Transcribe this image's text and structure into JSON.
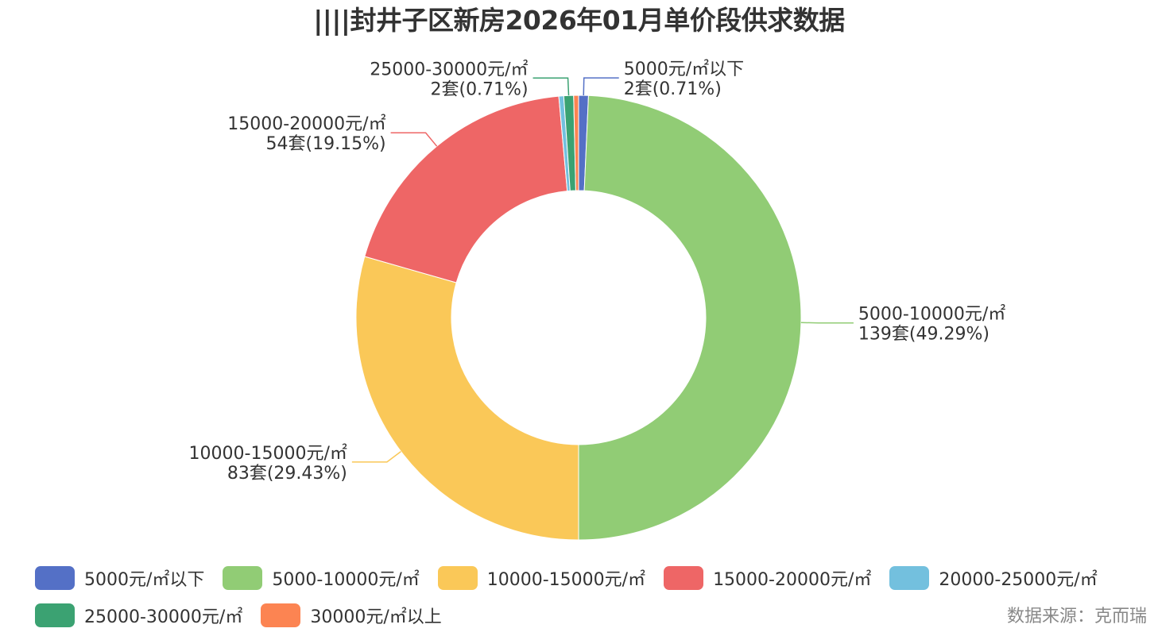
{
  "title": "||||封井子区新房2026年01月单价段供求数据",
  "source_note": "数据来源：克而瑞",
  "chart_data": {
    "type": "pie",
    "donut": true,
    "start_angle_deg": 0,
    "direction": "clockwise",
    "categories": [
      "5000元/㎡以下",
      "5000-10000元/㎡",
      "10000-15000元/㎡",
      "15000-20000元/㎡",
      "20000-25000元/㎡",
      "25000-30000元/㎡",
      "30000元/㎡以上"
    ],
    "values": [
      2,
      139,
      83,
      54,
      1,
      2,
      1
    ],
    "colors": [
      "#5470c6",
      "#91cc75",
      "#fac858",
      "#ee6666",
      "#73c0de",
      "#3ba272",
      "#fc8452"
    ],
    "slice_labels": [
      {
        "index": 0,
        "line1": "5000元/㎡以下",
        "line2": "2套(0.71%)"
      },
      {
        "index": 1,
        "line1": "5000-10000元/㎡",
        "line2": "139套(49.29%)"
      },
      {
        "index": 2,
        "line1": "10000-15000元/㎡",
        "line2": "83套(29.43%)"
      },
      {
        "index": 3,
        "line1": "15000-20000元/㎡",
        "line2": "54套(19.15%)"
      },
      {
        "index": 5,
        "line1": "25000-30000元/㎡",
        "line2": "2套(0.71%)"
      }
    ],
    "legend": [
      [
        {
          "label": "5000元/㎡以下",
          "color": "#5470c6"
        },
        {
          "label": "5000-10000元/㎡",
          "color": "#91cc75"
        },
        {
          "label": "10000-15000元/㎡",
          "color": "#fac858"
        },
        {
          "label": "15000-20000元/㎡",
          "color": "#ee6666"
        },
        {
          "label": "20000-25000元/㎡",
          "color": "#73c0de"
        }
      ],
      [
        {
          "label": "25000-30000元/㎡",
          "color": "#3ba272"
        },
        {
          "label": "30000元/㎡以上",
          "color": "#fc8452"
        }
      ]
    ],
    "legend_position": "bottom"
  }
}
